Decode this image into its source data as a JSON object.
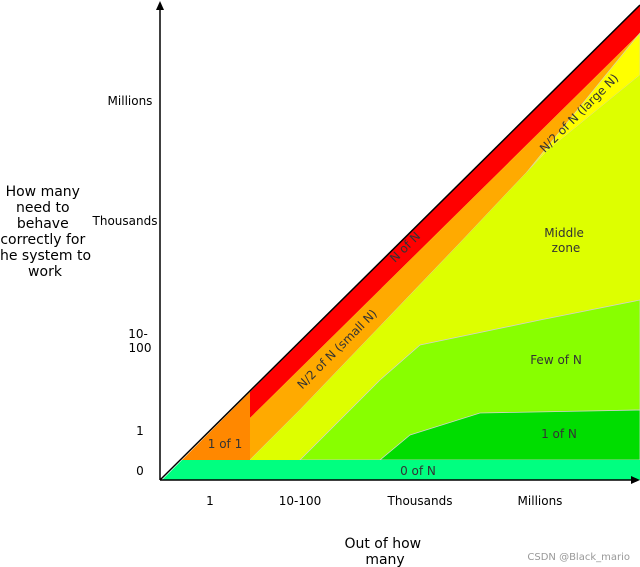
{
  "y_axis": {
    "title_lines": [
      "How many",
      "need to",
      "behave",
      "correctly for",
      "the system to",
      "work"
    ],
    "ticks": [
      {
        "lines": [
          "Millions"
        ]
      },
      {
        "lines": [
          "Thousands"
        ]
      },
      {
        "lines": [
          "10-",
          "100"
        ]
      },
      {
        "lines": [
          "1"
        ]
      },
      {
        "lines": [
          "0"
        ]
      }
    ]
  },
  "x_axis": {
    "title_lines": [
      "Out of how",
      "many"
    ],
    "ticks": [
      "1",
      "10-100",
      "Thousands",
      "Millions"
    ]
  },
  "zones": [
    {
      "id": "n-of-n",
      "lines": [
        "N of N"
      ],
      "color": "#ff0000"
    },
    {
      "id": "n2-small",
      "lines": [
        "N/2 of N (small N)"
      ],
      "color": "#ffaa00"
    },
    {
      "id": "n2-large",
      "lines": [
        "N/2 of N (large N)"
      ],
      "color": "#ffff00"
    },
    {
      "id": "middle",
      "lines": [
        "Middle",
        "zone"
      ],
      "color": "#ddff00"
    },
    {
      "id": "few",
      "lines": [
        "Few of N"
      ],
      "color": "#88ff00"
    },
    {
      "id": "one-of-n",
      "lines": [
        "1 of N"
      ],
      "color": "#00dd00"
    },
    {
      "id": "one-of-one",
      "lines": [
        "1 of 1"
      ],
      "color": "#ff8800"
    },
    {
      "id": "zero-of-n",
      "lines": [
        "0 of N"
      ],
      "color": "#00ff80"
    }
  ],
  "watermark": "CSDN @Black_mario"
}
